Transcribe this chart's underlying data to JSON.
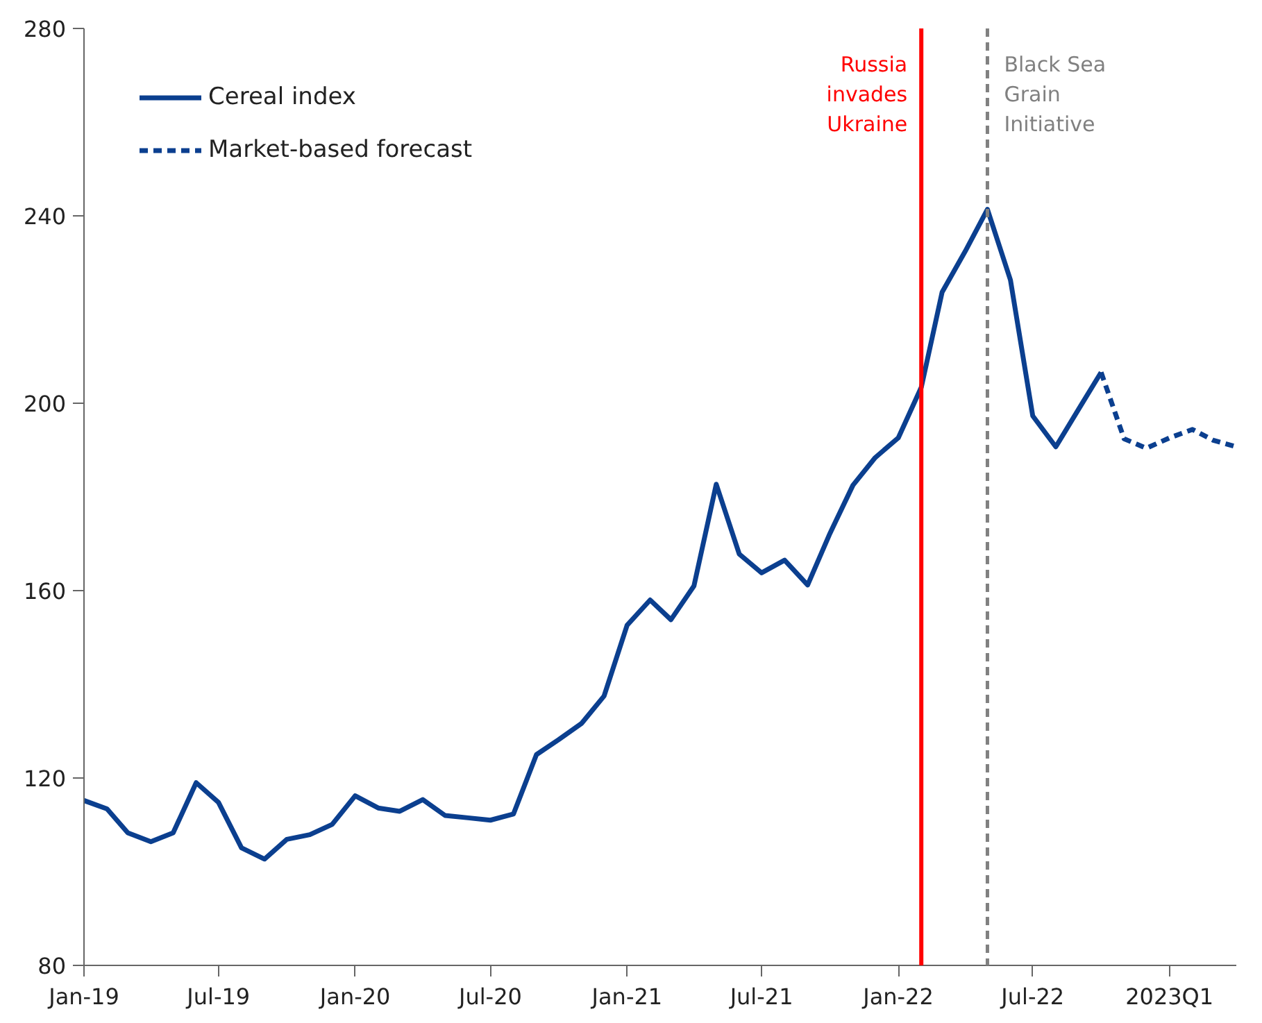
{
  "chart_data": {
    "type": "line",
    "ylim": [
      80,
      280
    ],
    "yticks": [
      80,
      120,
      160,
      200,
      240,
      280
    ],
    "xlim": [
      "2019-01",
      "2023-04"
    ],
    "xticks": [
      {
        "value": "2019-01",
        "label": "Jan-19"
      },
      {
        "value": "2019-07",
        "label": "Jul-19"
      },
      {
        "value": "2020-01",
        "label": "Jan-20"
      },
      {
        "value": "2020-07",
        "label": "Jul-20"
      },
      {
        "value": "2021-01",
        "label": "Jan-21"
      },
      {
        "value": "2021-07",
        "label": "Jul-21"
      },
      {
        "value": "2022-01",
        "label": "Jan-22"
      },
      {
        "value": "2022-07",
        "label": "Jul-22"
      },
      {
        "value": "2023-01",
        "label": "2023Q1"
      }
    ],
    "grid": false,
    "legend": "top left",
    "series": [
      {
        "name": "Cereal index",
        "color": "#0b3f8f",
        "line_style": "solid",
        "x": [
          "2019-01",
          "2019-02",
          "2019-03",
          "2019-04",
          "2019-05",
          "2019-06",
          "2019-07",
          "2019-08",
          "2019-09",
          "2019-10",
          "2019-11",
          "2019-12",
          "2020-01",
          "2020-02",
          "2020-03",
          "2020-04",
          "2020-05",
          "2020-06",
          "2020-07",
          "2020-08",
          "2020-09",
          "2020-10",
          "2020-11",
          "2020-12",
          "2021-01",
          "2021-02",
          "2021-03",
          "2021-04",
          "2021-05",
          "2021-06",
          "2021-07",
          "2021-08",
          "2021-09",
          "2021-10",
          "2021-11",
          "2021-12",
          "2022-01",
          "2022-02",
          "2022-03",
          "2022-04",
          "2022-05",
          "2022-06",
          "2022-07",
          "2022-08",
          "2022-09",
          "2022-10"
        ],
        "values": [
          115.2,
          113.4,
          108.3,
          106.4,
          108.3,
          119.0,
          114.8,
          105.1,
          102.7,
          106.9,
          107.9,
          110.1,
          116.2,
          113.6,
          112.9,
          115.4,
          112.0,
          111.5,
          111.0,
          112.3,
          125.0,
          128.2,
          131.7,
          137.5,
          152.6,
          158.0,
          153.8,
          161.0,
          182.7,
          167.8,
          163.8,
          166.5,
          161.2,
          172.2,
          182.5,
          188.4,
          192.6,
          203.4,
          223.7,
          232.4,
          241.4,
          226.3,
          197.3,
          190.7,
          198.8,
          206.6
        ]
      },
      {
        "name": "Market-based forecast",
        "color": "#0b3f8f",
        "line_style": "dashed",
        "x": [
          "2022-10",
          "2022-11",
          "2022-12",
          "2023-01",
          "2023-02",
          "2023-03",
          "2023-04"
        ],
        "values": [
          206.6,
          192.4,
          190.4,
          192.6,
          194.4,
          192.1,
          190.7
        ]
      }
    ],
    "ref_lines": [
      {
        "axis": "x",
        "value": "2022-02",
        "label": "Russia\ninvades\nUkraine",
        "color": "#ff0000",
        "line_style": "solid"
      },
      {
        "axis": "x",
        "value": "2022-05",
        "label": "Black Sea\nGrain\nInitiative",
        "color": "#808080",
        "line_style": "dashed"
      }
    ]
  }
}
